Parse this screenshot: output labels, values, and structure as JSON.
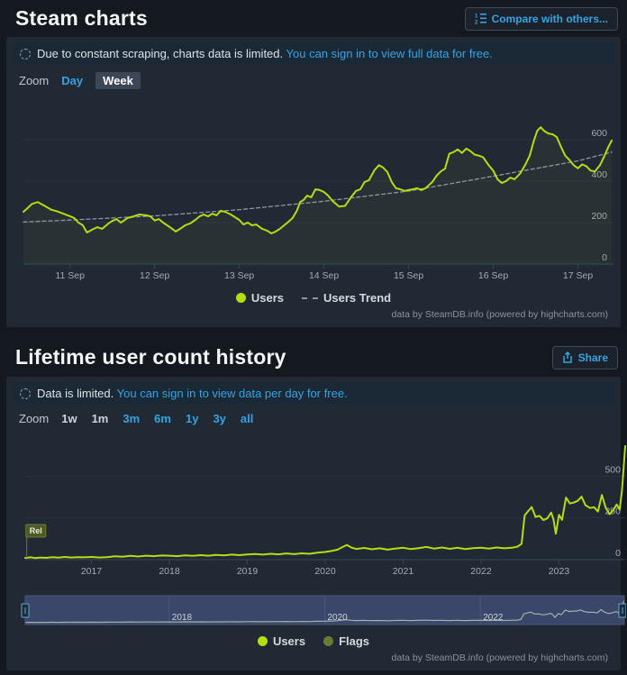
{
  "steam_charts": {
    "title": "Steam charts",
    "compare_button_label": "Compare with others...",
    "notice": {
      "text": "Due to constant scraping, charts data is limited.",
      "link": "You can sign in to view full data for free."
    },
    "zoom": {
      "label": "Zoom",
      "day": "Day",
      "week": "Week"
    },
    "legend": {
      "users": "Users",
      "trend": "Users Trend"
    },
    "credits": "data by SteamDB.info (powered by highcharts.com)"
  },
  "lifetime": {
    "title": "Lifetime user count history",
    "share_button_label": "Share",
    "notice": {
      "text": "Data is limited.",
      "link": "You can sign in to view data per day for free."
    },
    "zoom": {
      "label": "Zoom",
      "options": [
        {
          "label": "1w",
          "enabled": false
        },
        {
          "label": "1m",
          "enabled": false
        },
        {
          "label": "3m",
          "enabled": true
        },
        {
          "label": "6m",
          "enabled": true
        },
        {
          "label": "1y",
          "enabled": true
        },
        {
          "label": "3y",
          "enabled": true
        },
        {
          "label": "all",
          "enabled": true
        }
      ]
    },
    "legend": {
      "users": "Users",
      "flags": "Flags"
    },
    "credits": "data by SteamDB.info (powered by highcharts.com)"
  },
  "colors": {
    "users_line": "#b6dc12",
    "trend_line": "#8f95a6",
    "flags_olive": "#6c7b32",
    "link_blue": "#34a4e4",
    "navigator_mask": "#5d74b8",
    "navigator_line": "#cede9a",
    "grid": "#2c3442",
    "axis": "#3c4656",
    "tick_text": "#a6abb1"
  },
  "chart_data": [
    {
      "type": "line",
      "title": "",
      "xlabel": "",
      "ylabel": "",
      "xlim": [
        10.45,
        17.42
      ],
      "ylim": [
        0,
        800
      ],
      "xtick_values": [
        11,
        12,
        13,
        14,
        15,
        16,
        17
      ],
      "xtick_labels": [
        "11 Sep",
        "12 Sep",
        "13 Sep",
        "14 Sep",
        "15 Sep",
        "16 Sep",
        "17 Sep"
      ],
      "ytick_values": [
        0,
        200,
        400,
        600
      ],
      "legend_position": "bottom",
      "series": [
        {
          "name": "Users Trend",
          "dash": true,
          "points": [
            [
              10.45,
              203
            ],
            [
              11,
              212
            ],
            [
              12,
              232
            ],
            [
              13,
              262
            ],
            [
              14,
              303
            ],
            [
              15,
              352
            ],
            [
              16,
              424
            ],
            [
              17,
              498
            ],
            [
              17.4,
              540
            ]
          ]
        },
        {
          "name": "Users",
          "dash": false,
          "area": true,
          "points": [
            [
              10.45,
              252
            ],
            [
              10.5,
              270
            ],
            [
              10.55,
              290
            ],
            [
              10.62,
              299
            ],
            [
              10.7,
              281
            ],
            [
              10.78,
              262
            ],
            [
              10.85,
              254
            ],
            [
              10.92,
              243
            ],
            [
              11,
              231
            ],
            [
              11.05,
              222
            ],
            [
              11.1,
              200
            ],
            [
              11.15,
              188
            ],
            [
              11.2,
              152
            ],
            [
              11.27,
              168
            ],
            [
              11.32,
              178
            ],
            [
              11.38,
              170
            ],
            [
              11.45,
              195
            ],
            [
              11.5,
              208
            ],
            [
              11.55,
              217
            ],
            [
              11.6,
              200
            ],
            [
              11.68,
              222
            ],
            [
              11.75,
              230
            ],
            [
              11.82,
              239
            ],
            [
              11.9,
              235
            ],
            [
              11.95,
              230
            ],
            [
              12,
              210
            ],
            [
              12.05,
              217
            ],
            [
              12.1,
              200
            ],
            [
              12.18,
              178
            ],
            [
              12.25,
              157
            ],
            [
              12.3,
              170
            ],
            [
              12.36,
              187
            ],
            [
              12.42,
              196
            ],
            [
              12.48,
              213
            ],
            [
              12.53,
              230
            ],
            [
              12.58,
              239
            ],
            [
              12.63,
              230
            ],
            [
              12.68,
              243
            ],
            [
              12.73,
              235
            ],
            [
              12.78,
              257
            ],
            [
              12.83,
              252
            ],
            [
              12.9,
              239
            ],
            [
              12.95,
              226
            ],
            [
              13,
              213
            ],
            [
              13.05,
              191
            ],
            [
              13.1,
              200
            ],
            [
              13.15,
              187
            ],
            [
              13.2,
              191
            ],
            [
              13.27,
              170
            ],
            [
              13.33,
              161
            ],
            [
              13.38,
              148
            ],
            [
              13.43,
              157
            ],
            [
              13.48,
              170
            ],
            [
              13.53,
              187
            ],
            [
              13.58,
              204
            ],
            [
              13.63,
              222
            ],
            [
              13.68,
              257
            ],
            [
              13.72,
              300
            ],
            [
              13.76,
              309
            ],
            [
              13.8,
              330
            ],
            [
              13.85,
              322
            ],
            [
              13.9,
              361
            ],
            [
              13.95,
              357
            ],
            [
              14,
              348
            ],
            [
              14.05,
              330
            ],
            [
              14.1,
              305
            ],
            [
              14.18,
              277
            ],
            [
              14.25,
              281
            ],
            [
              14.32,
              323
            ],
            [
              14.38,
              353
            ],
            [
              14.43,
              361
            ],
            [
              14.48,
              396
            ],
            [
              14.53,
              404
            ],
            [
              14.6,
              455
            ],
            [
              14.65,
              477
            ],
            [
              14.7,
              465
            ],
            [
              14.75,
              443
            ],
            [
              14.8,
              396
            ],
            [
              14.85,
              366
            ],
            [
              14.9,
              361
            ],
            [
              14.95,
              353
            ],
            [
              15,
              357
            ],
            [
              15.05,
              361
            ],
            [
              15.1,
              366
            ],
            [
              15.15,
              357
            ],
            [
              15.2,
              366
            ],
            [
              15.28,
              396
            ],
            [
              15.33,
              426
            ],
            [
              15.38,
              447
            ],
            [
              15.43,
              460
            ],
            [
              15.48,
              532
            ],
            [
              15.53,
              540
            ],
            [
              15.58,
              553
            ],
            [
              15.63,
              536
            ],
            [
              15.68,
              557
            ],
            [
              15.73,
              545
            ],
            [
              15.78,
              528
            ],
            [
              15.83,
              523
            ],
            [
              15.88,
              515
            ],
            [
              15.94,
              480
            ],
            [
              16,
              450
            ],
            [
              16.05,
              409
            ],
            [
              16.1,
              391
            ],
            [
              16.15,
              400
            ],
            [
              16.2,
              417
            ],
            [
              16.25,
              409
            ],
            [
              16.32,
              438
            ],
            [
              16.38,
              481
            ],
            [
              16.43,
              523
            ],
            [
              16.48,
              596
            ],
            [
              16.52,
              643
            ],
            [
              16.56,
              660
            ],
            [
              16.6,
              643
            ],
            [
              16.65,
              630
            ],
            [
              16.7,
              626
            ],
            [
              16.75,
              613
            ],
            [
              16.8,
              566
            ],
            [
              16.85,
              523
            ],
            [
              16.9,
              502
            ],
            [
              16.95,
              477
            ],
            [
              17,
              462
            ],
            [
              17.05,
              481
            ],
            [
              17.1,
              472
            ],
            [
              17.15,
              451
            ],
            [
              17.2,
              447
            ],
            [
              17.26,
              477
            ],
            [
              17.31,
              519
            ],
            [
              17.36,
              566
            ],
            [
              17.4,
              596
            ]
          ]
        }
      ]
    },
    {
      "type": "line",
      "title": "",
      "xlabel": "",
      "ylabel": "",
      "xlim": [
        2016.15,
        2023.85
      ],
      "ylim": [
        0,
        750
      ],
      "xtick_values": [
        2017,
        2018,
        2019,
        2020,
        2021,
        2022,
        2023
      ],
      "xtick_labels": [
        "2017",
        "2018",
        "2019",
        "2020",
        "2021",
        "2022",
        "2023"
      ],
      "ytick_values": [
        0,
        250,
        500
      ],
      "legend_position": "bottom",
      "flags": [
        {
          "x": 2016.17,
          "label": "Rel"
        }
      ],
      "navigator": {
        "selected_range": [
          2016.15,
          2023.85
        ],
        "axis_labels": [
          "2018",
          "2020",
          "2022"
        ],
        "axis_label_x": [
          2018,
          2020,
          2022
        ]
      },
      "series": [
        {
          "name": "Users",
          "dash": false,
          "points": [
            [
              2016.15,
              10
            ],
            [
              2016.22,
              14
            ],
            [
              2016.28,
              9
            ],
            [
              2016.35,
              13
            ],
            [
              2016.42,
              11
            ],
            [
              2016.5,
              15
            ],
            [
              2016.58,
              12
            ],
            [
              2016.66,
              16
            ],
            [
              2016.74,
              13
            ],
            [
              2016.82,
              15
            ],
            [
              2016.9,
              14
            ],
            [
              2017,
              16
            ],
            [
              2017.1,
              13
            ],
            [
              2017.2,
              15
            ],
            [
              2017.3,
              20
            ],
            [
              2017.4,
              17
            ],
            [
              2017.5,
              23
            ],
            [
              2017.6,
              19
            ],
            [
              2017.7,
              24
            ],
            [
              2017.8,
              21
            ],
            [
              2017.9,
              25
            ],
            [
              2018,
              24
            ],
            [
              2018.1,
              21
            ],
            [
              2018.2,
              26
            ],
            [
              2018.3,
              23
            ],
            [
              2018.4,
              27
            ],
            [
              2018.5,
              24
            ],
            [
              2018.6,
              28
            ],
            [
              2018.7,
              26
            ],
            [
              2018.8,
              30
            ],
            [
              2018.9,
              27
            ],
            [
              2019,
              31
            ],
            [
              2019.1,
              34
            ],
            [
              2019.2,
              30
            ],
            [
              2019.3,
              35
            ],
            [
              2019.4,
              32
            ],
            [
              2019.5,
              37
            ],
            [
              2019.6,
              33
            ],
            [
              2019.7,
              38
            ],
            [
              2019.8,
              35
            ],
            [
              2019.9,
              42
            ],
            [
              2020,
              46
            ],
            [
              2020.08,
              52
            ],
            [
              2020.16,
              60
            ],
            [
              2020.22,
              75
            ],
            [
              2020.28,
              88
            ],
            [
              2020.34,
              72
            ],
            [
              2020.4,
              64
            ],
            [
              2020.5,
              70
            ],
            [
              2020.6,
              62
            ],
            [
              2020.7,
              68
            ],
            [
              2020.8,
              60
            ],
            [
              2020.9,
              66
            ],
            [
              2021,
              71
            ],
            [
              2021.1,
              63
            ],
            [
              2021.2,
              69
            ],
            [
              2021.3,
              76
            ],
            [
              2021.4,
              66
            ],
            [
              2021.5,
              73
            ],
            [
              2021.6,
              65
            ],
            [
              2021.7,
              71
            ],
            [
              2021.8,
              63
            ],
            [
              2021.9,
              69
            ],
            [
              2022,
              72
            ],
            [
              2022.1,
              66
            ],
            [
              2022.2,
              73
            ],
            [
              2022.3,
              68
            ],
            [
              2022.4,
              71
            ],
            [
              2022.47,
              78
            ],
            [
              2022.52,
              95
            ],
            [
              2022.56,
              265
            ],
            [
              2022.6,
              288
            ],
            [
              2022.65,
              315
            ],
            [
              2022.7,
              256
            ],
            [
              2022.75,
              262
            ],
            [
              2022.8,
              237
            ],
            [
              2022.85,
              247
            ],
            [
              2022.9,
              282
            ],
            [
              2022.93,
              240
            ],
            [
              2022.96,
              155
            ],
            [
              2023,
              268
            ],
            [
              2023.04,
              238
            ],
            [
              2023.09,
              372
            ],
            [
              2023.14,
              336
            ],
            [
              2023.19,
              342
            ],
            [
              2023.24,
              352
            ],
            [
              2023.29,
              377
            ],
            [
              2023.34,
              326
            ],
            [
              2023.4,
              309
            ],
            [
              2023.45,
              314
            ],
            [
              2023.5,
              288
            ],
            [
              2023.55,
              388
            ],
            [
              2023.6,
              310
            ],
            [
              2023.65,
              272
            ],
            [
              2023.7,
              298
            ],
            [
              2023.74,
              330
            ],
            [
              2023.78,
              300
            ],
            [
              2023.81,
              420
            ],
            [
              2023.85,
              680
            ]
          ]
        }
      ]
    }
  ]
}
